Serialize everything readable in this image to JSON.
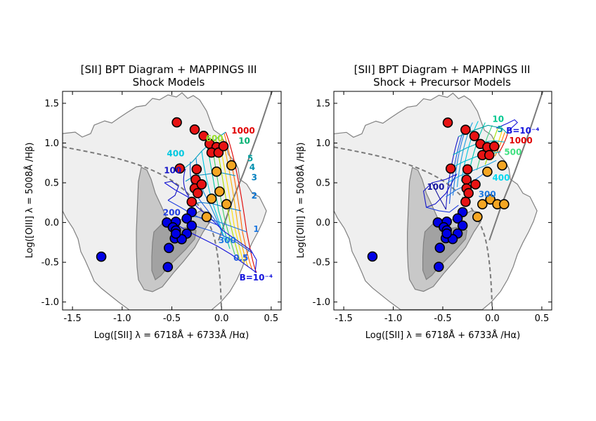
{
  "colors": {
    "outer_contour_fill": "#efefef",
    "mid_contour_fill": "#c8c8c8",
    "inner_contour_fill": "#a2a2a2",
    "contour_line": "#808080",
    "demarcation_line": "#7a7a7a",
    "red_marker": "#e81313",
    "orange_marker": "#f5a623",
    "blue_marker": "#0000e6",
    "marker_edge": "#000000"
  },
  "chart_data": [
    {
      "type": "scatter",
      "title_line1": "[SII] BPT Diagram  +  MAPPINGS III",
      "title_line2": "Shock Models",
      "xlabel": "Log([SII] λ = 6718Å + 6733Å /Hα)",
      "ylabel": "Log([OIII] λ = 5008Å /Hβ)",
      "xlim": [
        -1.6,
        0.6
      ],
      "ylim": [
        -1.1,
        1.65
      ],
      "xticks": [
        -1.5,
        -1.0,
        -0.5,
        0.0,
        0.5
      ],
      "xtick_labels": [
        "-1.5",
        "-1.0",
        "-0.5",
        "0.0",
        "0.5"
      ],
      "yticks": [
        -1.0,
        -0.5,
        0.0,
        0.5,
        1.0,
        1.5
      ],
      "ytick_labels": [
        "-1.0",
        "-0.5",
        "0.0",
        "0.5",
        "1.0",
        "1.5"
      ],
      "grid": false,
      "red_points": [
        [
          -0.45,
          1.26
        ],
        [
          -0.27,
          1.17
        ],
        [
          -0.18,
          1.09
        ],
        [
          -0.12,
          0.99
        ],
        [
          -0.05,
          0.95
        ],
        [
          -0.1,
          0.88
        ],
        [
          -0.03,
          0.88
        ],
        [
          0.02,
          0.96
        ],
        [
          -0.42,
          0.68
        ],
        [
          -0.25,
          0.67
        ],
        [
          -0.26,
          0.54
        ],
        [
          -0.27,
          0.43
        ],
        [
          -0.2,
          0.48
        ],
        [
          -0.24,
          0.37
        ],
        [
          -0.3,
          0.26
        ]
      ],
      "orange_points": [
        [
          -0.05,
          0.64
        ],
        [
          0.1,
          0.72
        ],
        [
          -0.02,
          0.39
        ],
        [
          -0.1,
          0.3
        ],
        [
          0.05,
          0.23
        ],
        [
          -0.15,
          0.07
        ]
      ],
      "blue_points": [
        [
          -1.21,
          -0.43
        ],
        [
          -0.55,
          0.0
        ],
        [
          -0.46,
          0.01
        ],
        [
          -0.3,
          0.13
        ],
        [
          -0.35,
          0.05
        ],
        [
          -0.49,
          -0.06
        ],
        [
          -0.46,
          -0.1
        ],
        [
          -0.3,
          -0.04
        ],
        [
          -0.35,
          -0.14
        ],
        [
          -0.47,
          -0.2
        ],
        [
          -0.4,
          -0.21
        ],
        [
          -0.53,
          -0.32
        ],
        [
          -0.54,
          -0.56
        ],
        [
          -0.46,
          -0.14
        ]
      ],
      "model_labels": [
        {
          "text": "1000",
          "x": 0.1,
          "y": 1.12,
          "color": "#e00000"
        },
        {
          "text": "600",
          "x": -0.16,
          "y": 1.02,
          "color": "#9adf2a"
        },
        {
          "text": "10",
          "x": 0.17,
          "y": 0.99,
          "color": "#00b070"
        },
        {
          "text": "400",
          "x": -0.55,
          "y": 0.83,
          "color": "#00c8e0"
        },
        {
          "text": "5",
          "x": 0.26,
          "y": 0.77,
          "color": "#00a0a0"
        },
        {
          "text": "100",
          "x": -0.58,
          "y": 0.62,
          "color": "#1414c8"
        },
        {
          "text": "4",
          "x": 0.28,
          "y": 0.66,
          "color": "#0090b0"
        },
        {
          "text": "3",
          "x": 0.3,
          "y": 0.53,
          "color": "#0080c0"
        },
        {
          "text": "2",
          "x": 0.3,
          "y": 0.3,
          "color": "#0070d0"
        },
        {
          "text": "200",
          "x": -0.59,
          "y": 0.09,
          "color": "#1e3ce0"
        },
        {
          "text": "1",
          "x": 0.32,
          "y": -0.12,
          "color": "#1e78e0"
        },
        {
          "text": "300",
          "x": -0.03,
          "y": -0.26,
          "color": "#1e78e0"
        },
        {
          "text": "0.5",
          "x": 0.12,
          "y": -0.48,
          "color": "#1e5ae0"
        },
        {
          "text": "B=10⁻⁴",
          "x": 0.18,
          "y": -0.73,
          "color": "#1414dc"
        }
      ]
    },
    {
      "type": "scatter",
      "title_line1": "[SII] BPT Diagram  +  MAPPINGS III",
      "title_line2": "Shock + Precursor Models",
      "xlabel": "Log([SII] λ = 6718Å + 6733Å /Hα)",
      "ylabel": "Log([OIII] λ = 5008Å /Hβ)",
      "xlim": [
        -1.6,
        0.6
      ],
      "ylim": [
        -1.1,
        1.65
      ],
      "xticks": [
        -1.5,
        -1.0,
        -0.5,
        0.0,
        0.5
      ],
      "xtick_labels": [
        "-1.5",
        "-1.0",
        "-0.5",
        "0.0",
        "0.5"
      ],
      "yticks": [
        -1.0,
        -0.5,
        0.0,
        0.5,
        1.0,
        1.5
      ],
      "ytick_labels": [
        "-1.0",
        "-0.5",
        "0.0",
        "0.5",
        "1.0",
        "1.5"
      ],
      "grid": false,
      "red_points": [
        [
          -0.45,
          1.26
        ],
        [
          -0.27,
          1.17
        ],
        [
          -0.18,
          1.09
        ],
        [
          -0.12,
          0.99
        ],
        [
          -0.05,
          0.95
        ],
        [
          -0.1,
          0.85
        ],
        [
          -0.03,
          0.85
        ],
        [
          0.02,
          0.96
        ],
        [
          -0.42,
          0.68
        ],
        [
          -0.25,
          0.67
        ],
        [
          -0.26,
          0.54
        ],
        [
          -0.26,
          0.43
        ],
        [
          -0.17,
          0.48
        ],
        [
          -0.24,
          0.37
        ],
        [
          -0.27,
          0.26
        ]
      ],
      "orange_points": [
        [
          -0.05,
          0.64
        ],
        [
          0.1,
          0.72
        ],
        [
          -0.02,
          0.29
        ],
        [
          -0.1,
          0.23
        ],
        [
          0.05,
          0.23
        ],
        [
          0.12,
          0.23
        ],
        [
          -0.15,
          0.07
        ]
      ],
      "blue_points": [
        [
          -1.21,
          -0.43
        ],
        [
          -0.55,
          0.0
        ],
        [
          -0.46,
          0.01
        ],
        [
          -0.3,
          0.13
        ],
        [
          -0.35,
          0.05
        ],
        [
          -0.49,
          -0.06
        ],
        [
          -0.46,
          -0.1
        ],
        [
          -0.3,
          -0.04
        ],
        [
          -0.35,
          -0.14
        ],
        [
          -0.47,
          -0.2
        ],
        [
          -0.4,
          -0.21
        ],
        [
          -0.53,
          -0.32
        ],
        [
          -0.54,
          -0.56
        ],
        [
          -0.46,
          -0.14
        ]
      ],
      "model_labels": [
        {
          "text": "10",
          "x": 0.0,
          "y": 1.27,
          "color": "#00c890"
        },
        {
          "text": "5",
          "x": 0.05,
          "y": 1.14,
          "color": "#00a0a0"
        },
        {
          "text": "B=10⁻⁴",
          "x": 0.14,
          "y": 1.12,
          "color": "#1414dc"
        },
        {
          "text": "1000",
          "x": 0.17,
          "y": 1.0,
          "color": "#e00000"
        },
        {
          "text": "500",
          "x": 0.12,
          "y": 0.85,
          "color": "#40e080"
        },
        {
          "text": "100",
          "x": -0.66,
          "y": 0.41,
          "color": "#1414a0"
        },
        {
          "text": "400",
          "x": 0.0,
          "y": 0.53,
          "color": "#00d8f0"
        },
        {
          "text": "300",
          "x": -0.14,
          "y": 0.32,
          "color": "#1e78e0"
        }
      ]
    }
  ]
}
